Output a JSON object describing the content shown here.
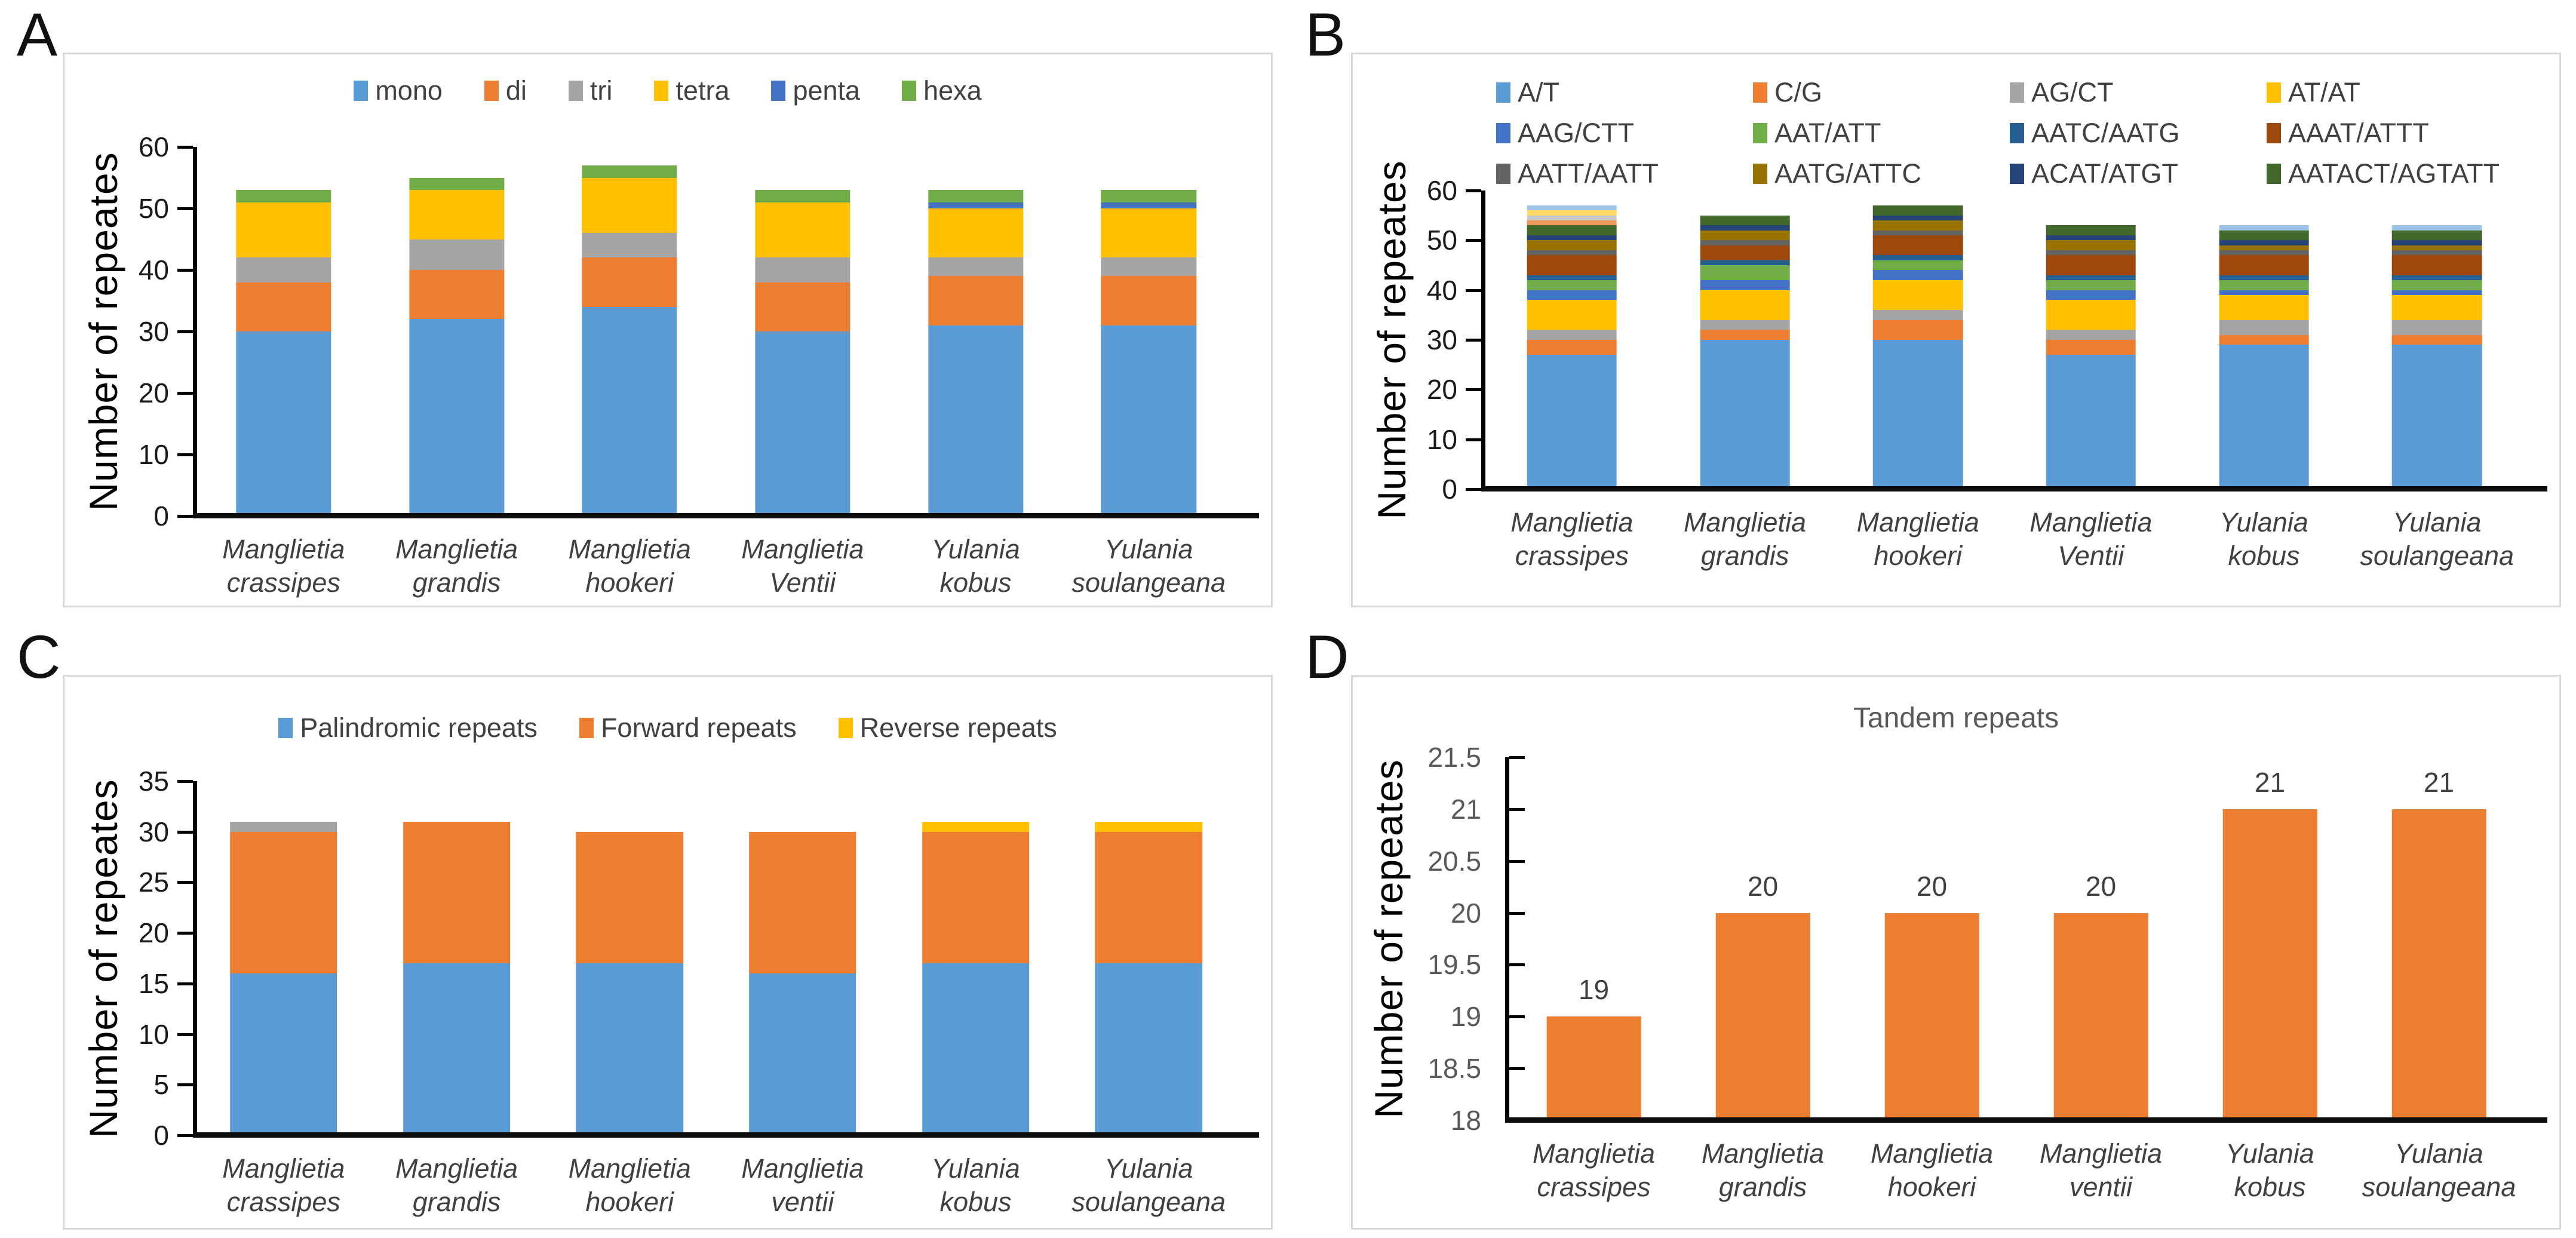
{
  "figure": {
    "panels": [
      {
        "letter": "A"
      },
      {
        "letter": "B"
      },
      {
        "letter": "C"
      },
      {
        "letter": "D"
      }
    ]
  },
  "chart_data": [
    {
      "id": "A",
      "type": "bar-stacked",
      "y_label": "Number of repeates",
      "ylim": [
        0,
        60
      ],
      "yticks": [
        "0",
        "10",
        "20",
        "30",
        "40",
        "50",
        "60"
      ],
      "grid": false,
      "legend_position": "top-center",
      "bar_width_pct": 55,
      "categories": [
        [
          "Manglietia",
          "crassipes"
        ],
        [
          "Manglietia",
          "grandis"
        ],
        [
          "Manglietia",
          "hookeri"
        ],
        [
          "Manglietia",
          "Ventii"
        ],
        [
          "Yulania",
          "kobus"
        ],
        [
          "Yulania",
          "soulangeana"
        ]
      ],
      "series": [
        {
          "name": "mono",
          "color": "#5B9BD5",
          "in_legend": true,
          "values": [
            30,
            32,
            34,
            30,
            31,
            31
          ]
        },
        {
          "name": "di",
          "color": "#ED7D31",
          "in_legend": true,
          "values": [
            8,
            8,
            8,
            8,
            8,
            8
          ]
        },
        {
          "name": "tri",
          "color": "#A5A5A5",
          "in_legend": true,
          "values": [
            4,
            5,
            4,
            4,
            3,
            3
          ]
        },
        {
          "name": "tetra",
          "color": "#FFC000",
          "in_legend": true,
          "values": [
            9,
            8,
            9,
            9,
            8,
            8
          ]
        },
        {
          "name": "penta",
          "color": "#4472C4",
          "in_legend": true,
          "values": [
            0,
            0,
            0,
            0,
            1,
            1
          ]
        },
        {
          "name": "hexa",
          "color": "#70AD47",
          "in_legend": true,
          "values": [
            2,
            2,
            2,
            2,
            2,
            2
          ]
        }
      ]
    },
    {
      "id": "B",
      "type": "bar-stacked",
      "y_label": "Number of repeates",
      "ylim": [
        0,
        60
      ],
      "yticks": [
        "0",
        "10",
        "20",
        "30",
        "40",
        "50",
        "60"
      ],
      "grid": false,
      "legend_position": "top-grid-4col",
      "bar_width_pct": 52,
      "categories": [
        [
          "Manglietia",
          "crassipes"
        ],
        [
          "Manglietia",
          "grandis"
        ],
        [
          "Manglietia",
          "hookeri"
        ],
        [
          "Manglietia",
          "Ventii"
        ],
        [
          "Yulania",
          "kobus"
        ],
        [
          "Yulania",
          "soulangeana"
        ]
      ],
      "series": [
        {
          "name": "A/T",
          "color": "#5B9BD5",
          "in_legend": true,
          "values": [
            27,
            30,
            30,
            27,
            29,
            29
          ]
        },
        {
          "name": "C/G",
          "color": "#ED7D31",
          "in_legend": true,
          "values": [
            3,
            2,
            4,
            3,
            2,
            2
          ]
        },
        {
          "name": "AG/CT",
          "color": "#A5A5A5",
          "in_legend": true,
          "values": [
            2,
            2,
            2,
            2,
            3,
            3
          ]
        },
        {
          "name": "AT/AT",
          "color": "#FFC000",
          "in_legend": true,
          "values": [
            6,
            6,
            6,
            6,
            5,
            5
          ]
        },
        {
          "name": "AAG/CTT",
          "color": "#4472C4",
          "in_legend": true,
          "values": [
            2,
            2,
            2,
            2,
            1,
            1
          ]
        },
        {
          "name": "AAT/ATT",
          "color": "#70AD47",
          "in_legend": true,
          "values": [
            2,
            3,
            2,
            2,
            2,
            2
          ]
        },
        {
          "name": "AATC/AATG",
          "color": "#255E91",
          "in_legend": true,
          "values": [
            1,
            1,
            1,
            1,
            1,
            1
          ]
        },
        {
          "name": "AAAT/ATTT",
          "color": "#9E480E",
          "in_legend": true,
          "values": [
            4,
            3,
            4,
            4,
            4,
            4
          ]
        },
        {
          "name": "AATT/AATT",
          "color": "#636363",
          "in_legend": true,
          "values": [
            1,
            1,
            1,
            1,
            1,
            1
          ]
        },
        {
          "name": "AATG/ATTC",
          "color": "#997300",
          "in_legend": true,
          "values": [
            2,
            2,
            2,
            2,
            1,
            1
          ]
        },
        {
          "name": "ACAT/ATGT",
          "color": "#264478",
          "in_legend": true,
          "values": [
            1,
            1,
            1,
            1,
            1,
            1
          ]
        },
        {
          "name": "AATACT/AGTATT",
          "color": "#43682B",
          "in_legend": true,
          "values": [
            2,
            2,
            2,
            2,
            2,
            2
          ]
        },
        {
          "name": "(unlabeled)",
          "color": "#F1975A",
          "in_legend": false,
          "values": [
            1,
            0,
            0,
            0,
            0,
            0
          ]
        },
        {
          "name": "(unlabeled)",
          "color": "#C9C9C9",
          "in_legend": false,
          "values": [
            1,
            0,
            0,
            0,
            0,
            0
          ]
        },
        {
          "name": "(unlabeled)",
          "color": "#FFD966",
          "in_legend": false,
          "values": [
            1,
            0,
            0,
            0,
            0,
            0
          ]
        },
        {
          "name": "(unlabeled)",
          "color": "#9DC3E6",
          "in_legend": false,
          "values": [
            1,
            0,
            0,
            0,
            1,
            1
          ]
        }
      ]
    },
    {
      "id": "C",
      "type": "bar-stacked",
      "y_label": "Number of repeates",
      "ylim": [
        0,
        35
      ],
      "yticks": [
        "0",
        "5",
        "10",
        "15",
        "20",
        "25",
        "30",
        "35"
      ],
      "grid": false,
      "legend_position": "top-center",
      "bar_width_pct": 62,
      "categories": [
        [
          "Manglietia",
          "crassipes"
        ],
        [
          "Manglietia",
          "grandis"
        ],
        [
          "Manglietia",
          "hookeri"
        ],
        [
          "Manglietia",
          "ventii"
        ],
        [
          "Yulania",
          "kobus"
        ],
        [
          "Yulania",
          "soulangeana"
        ]
      ],
      "series": [
        {
          "name": "Palindromic repeats",
          "color": "#5B9BD5",
          "in_legend": true,
          "values": [
            16,
            17,
            17,
            16,
            17,
            17
          ]
        },
        {
          "name": "Forward repeats",
          "color": "#ED7D31",
          "in_legend": true,
          "values": [
            14,
            14,
            13,
            14,
            13,
            13
          ]
        },
        {
          "name": "Reverse repeats",
          "color": "#FFC000",
          "in_legend": true,
          "values": [
            0,
            0,
            0,
            0,
            1,
            1
          ]
        },
        {
          "name": "(unlabeled)",
          "color": "#A5A5A5",
          "in_legend": false,
          "values": [
            1,
            0,
            0,
            0,
            0,
            0
          ]
        }
      ]
    },
    {
      "id": "D",
      "type": "bar",
      "title": "Tandem repeats",
      "y_label": "Number of repeates",
      "ylim": [
        18,
        21.5
      ],
      "yticks": [
        "18",
        "18.5",
        "19",
        "19.5",
        "20",
        "20.5",
        "21",
        "21.5"
      ],
      "grid": false,
      "bar_color": "#ED7D31",
      "bar_width_pct": 56,
      "data_labels": [
        "19",
        "20",
        "20",
        "20",
        "21",
        "21"
      ],
      "values": [
        19,
        20,
        20,
        20,
        21,
        21
      ],
      "categories": [
        [
          "Manglietia",
          "crassipes"
        ],
        [
          "Manglietia",
          "grandis"
        ],
        [
          "Manglietia",
          "hookeri"
        ],
        [
          "Manglietia",
          "ventii"
        ],
        [
          "Yulania",
          "kobus"
        ],
        [
          "Yulania",
          "soulangeana"
        ]
      ]
    }
  ]
}
